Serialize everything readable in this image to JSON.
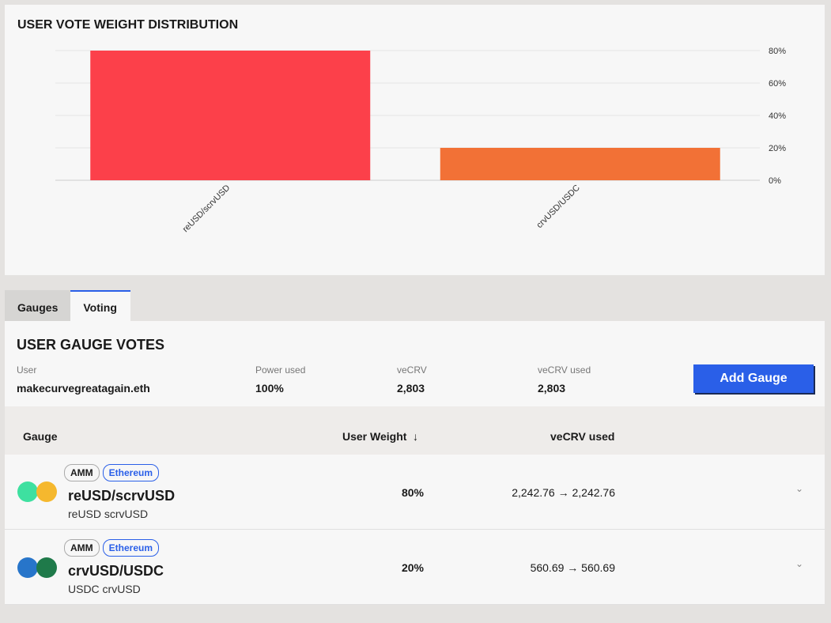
{
  "chart_data": {
    "type": "bar",
    "title": "USER VOTE WEIGHT DISTRIBUTION",
    "categories": [
      "reUSD/scrvUSD",
      "crvUSD/USDC"
    ],
    "values": [
      80,
      20
    ],
    "colors": [
      "#fc404a",
      "#f27136"
    ],
    "ylim": [
      0,
      80
    ],
    "yticks": [
      "0%",
      "20%",
      "40%",
      "60%",
      "80%"
    ],
    "ytick_values": [
      0,
      20,
      40,
      60,
      80
    ],
    "grid": true
  },
  "tabs": [
    "Gauges",
    "Voting"
  ],
  "votes": {
    "title": "USER GAUGE VOTES",
    "user_label": "User",
    "user": "makecurvegreatagain.eth",
    "power_label": "Power used",
    "power": "100%",
    "vecrv_label": "veCRV",
    "vecrv": "2,803",
    "vecrv_used_label": "veCRV used",
    "vecrv_used": "2,803",
    "add_gauge": "Add Gauge"
  },
  "table": {
    "headers": {
      "gauge": "Gauge",
      "weight": "User Weight",
      "sort_icon": "↓",
      "vecrv": "veCRV used"
    },
    "rows": [
      {
        "type": "AMM",
        "chain": "Ethereum",
        "name": "reUSD/scrvUSD",
        "tokens": "reUSD scrvUSD",
        "weight": "80%",
        "vecrv": "2,242.76 → 2,242.76"
      },
      {
        "type": "AMM",
        "chain": "Ethereum",
        "name": "crvUSD/USDC",
        "tokens": "USDC crvUSD",
        "weight": "20%",
        "vecrv": "560.69 → 560.69"
      }
    ]
  }
}
